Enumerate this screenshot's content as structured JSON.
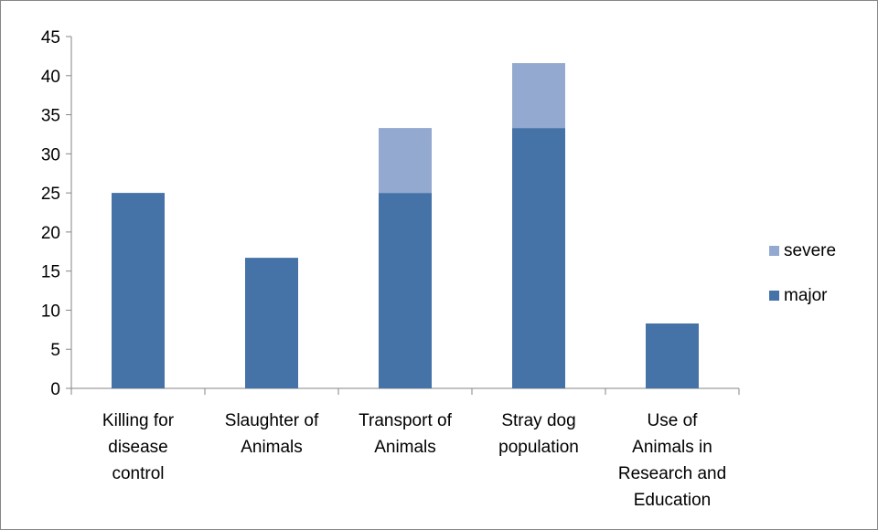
{
  "chart_data": {
    "type": "bar",
    "stacked": true,
    "categories": [
      [
        "Killing for",
        "disease",
        "control"
      ],
      [
        "Slaughter of",
        "Animals"
      ],
      [
        "Transport of",
        "Animals"
      ],
      [
        "Stray dog",
        "population"
      ],
      [
        "Use of",
        "Animals in",
        "Research and",
        "Education"
      ]
    ],
    "series": [
      {
        "name": "major",
        "values": [
          25,
          16.7,
          25,
          33.3,
          8.3
        ],
        "color": "#4572A7"
      },
      {
        "name": "severe",
        "values": [
          0,
          0,
          8.3,
          8.3,
          0
        ],
        "color": "#93A9CF"
      }
    ],
    "ylim": [
      0,
      45
    ],
    "yticks": [
      0,
      5,
      10,
      15,
      20,
      25,
      30,
      35,
      40,
      45
    ],
    "grid": false,
    "legend": {
      "placement": "right",
      "order": [
        "severe",
        "major"
      ]
    },
    "title": "",
    "xlabel": "",
    "ylabel": ""
  }
}
